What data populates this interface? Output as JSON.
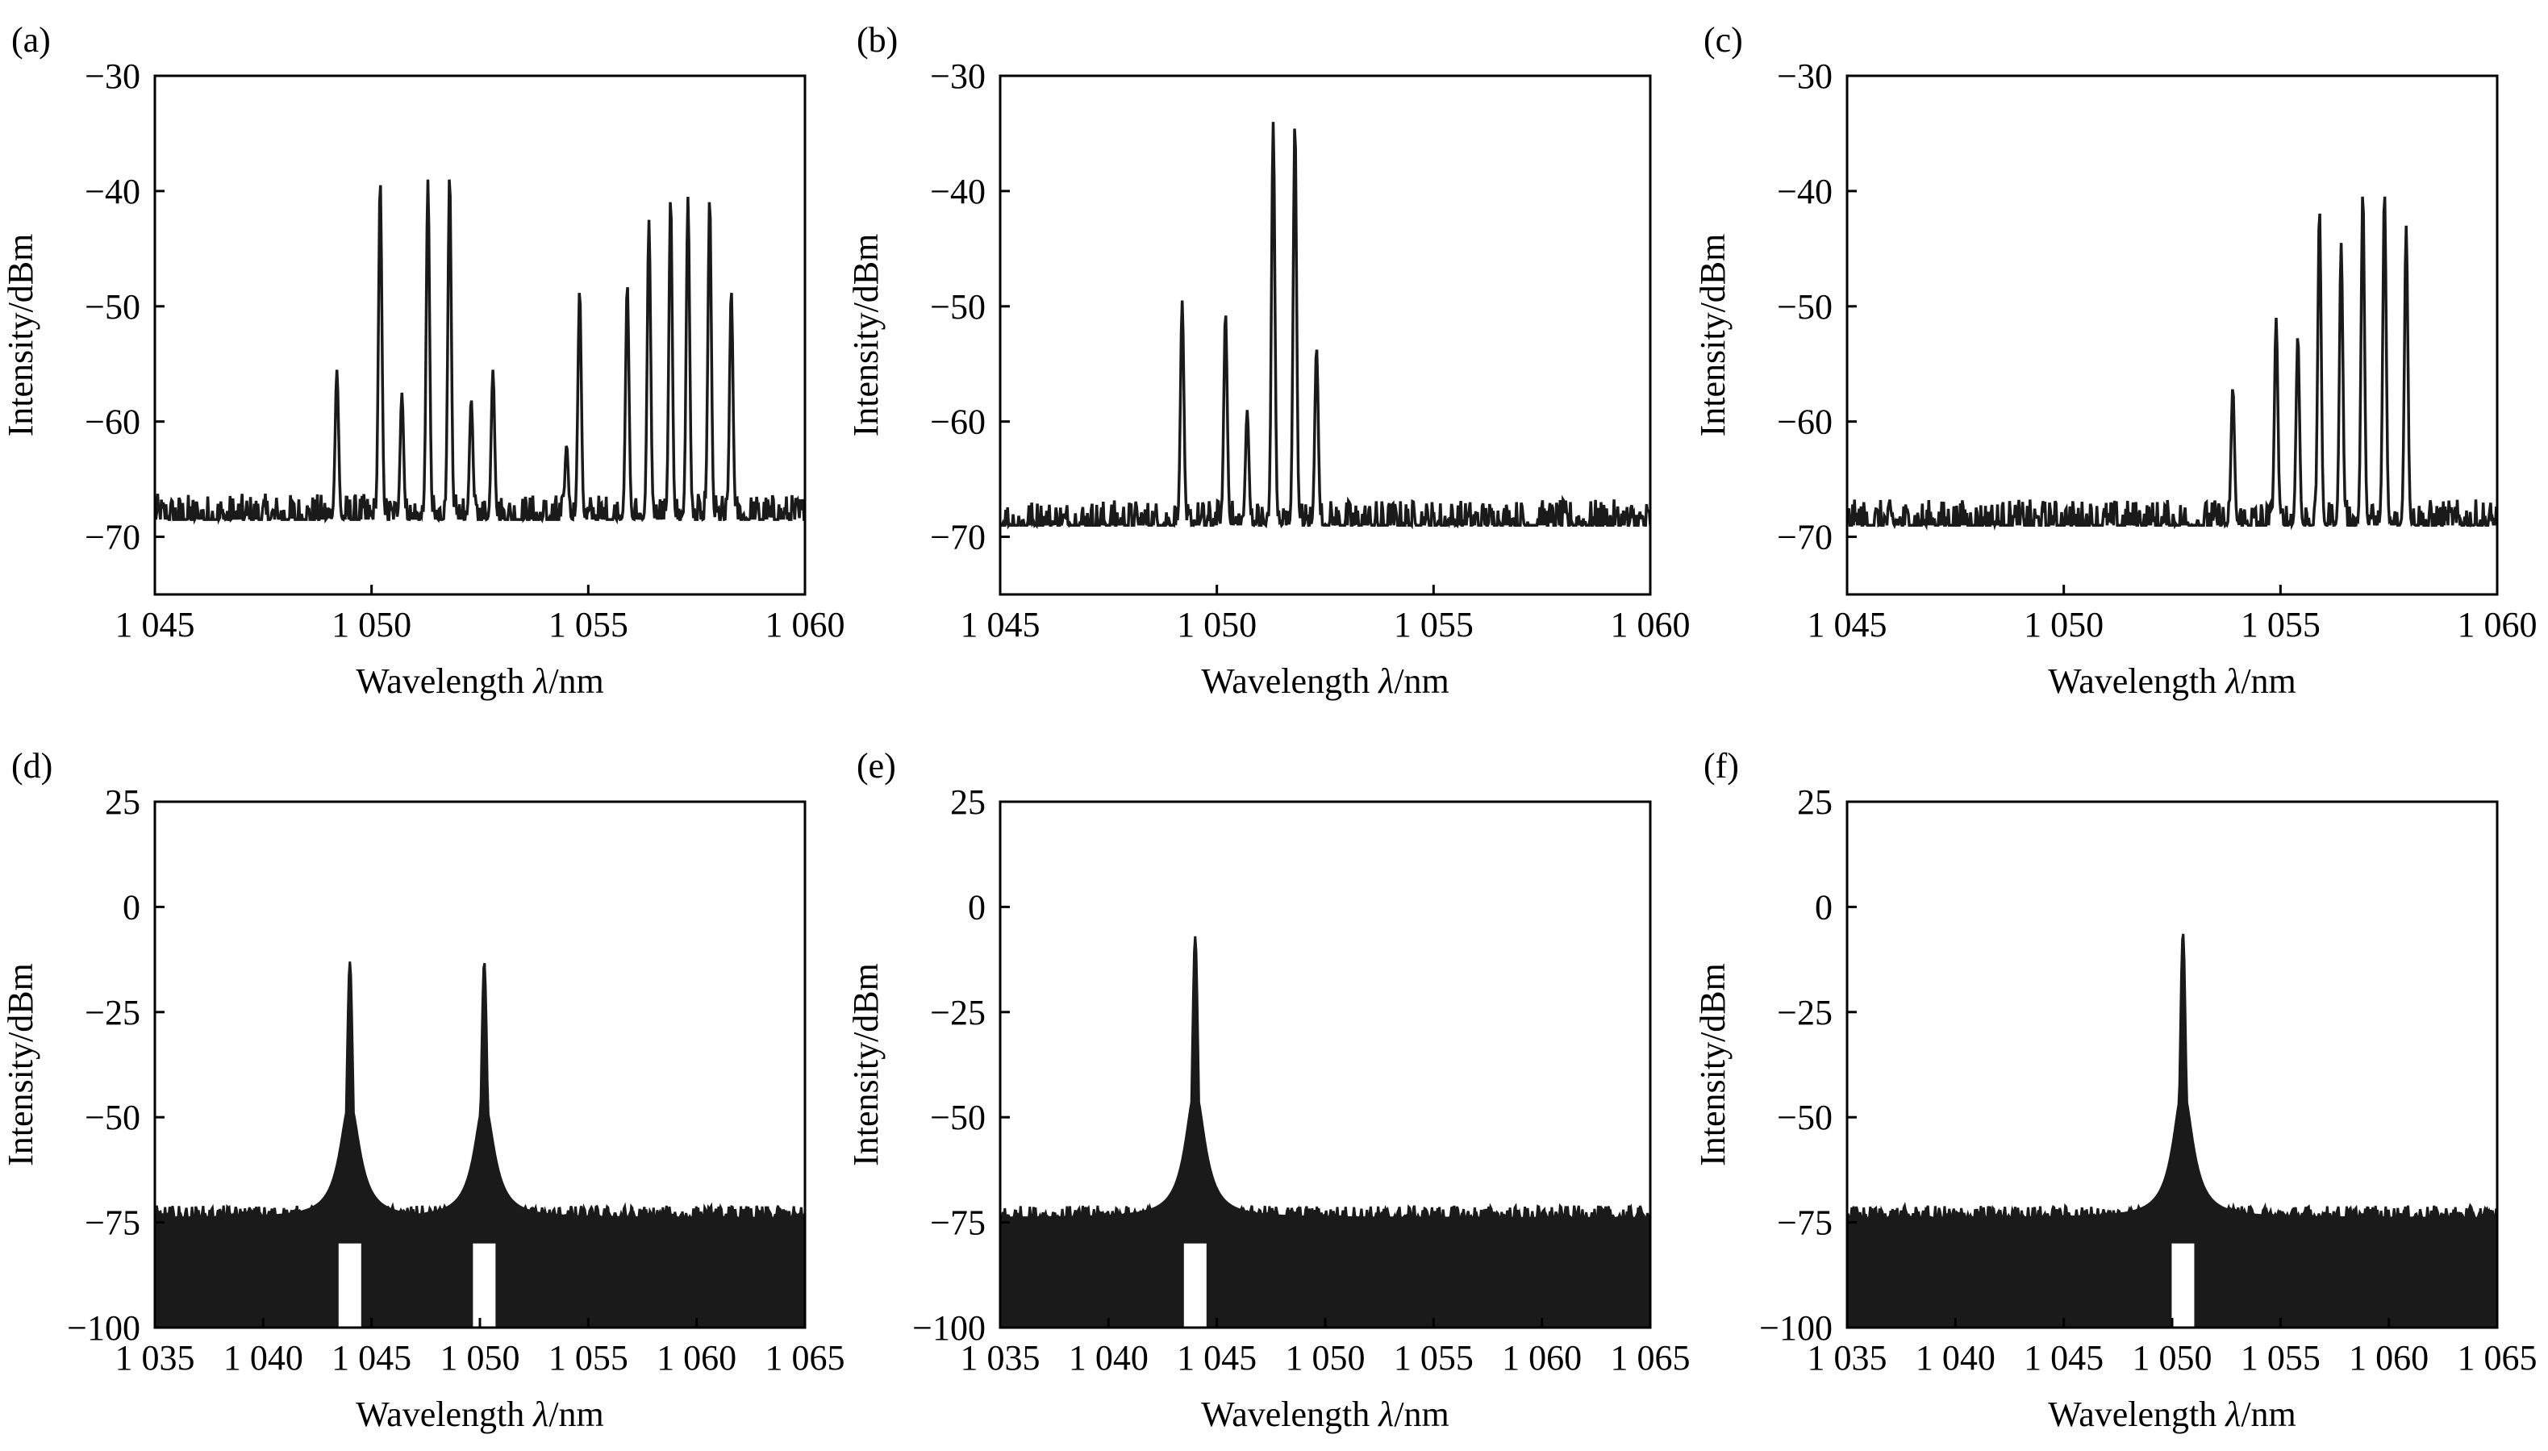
{
  "figure": {
    "colors": {
      "trace": "#1a1a1a",
      "frame": "#000000",
      "background": "#ffffff"
    }
  },
  "chart_data": [
    {
      "panel": "(a)",
      "type": "line",
      "xlabel": "Wavelength λ/nm",
      "ylabel": "Intensity/dBm",
      "xlim": [
        1045,
        1060
      ],
      "ylim": [
        -75,
        -30
      ],
      "xticks": [
        1045,
        1050,
        1055,
        1060
      ],
      "xtick_labels": [
        "1 045",
        "1 050",
        "1 055",
        "1 060"
      ],
      "yticks": [
        -30,
        -40,
        -50,
        -60,
        -70
      ],
      "ytick_labels": [
        "−30",
        "−40",
        "−50",
        "−60",
        "−70"
      ],
      "noise_floor": -68.5,
      "peaks": [
        {
          "x": 1049.2,
          "y": -55.5
        },
        {
          "x": 1050.2,
          "y": -39.0
        },
        {
          "x": 1050.7,
          "y": -57.5
        },
        {
          "x": 1051.3,
          "y": -39.0
        },
        {
          "x": 1051.8,
          "y": -38.5
        },
        {
          "x": 1052.3,
          "y": -58.0
        },
        {
          "x": 1052.8,
          "y": -55.5
        },
        {
          "x": 1054.5,
          "y": -62.0
        },
        {
          "x": 1054.8,
          "y": -48.5
        },
        {
          "x": 1055.9,
          "y": -48.0
        },
        {
          "x": 1056.4,
          "y": -42.5
        },
        {
          "x": 1056.9,
          "y": -40.5
        },
        {
          "x": 1057.3,
          "y": -40.5
        },
        {
          "x": 1057.8,
          "y": -40.5
        },
        {
          "x": 1058.3,
          "y": -48.5
        }
      ]
    },
    {
      "panel": "(b)",
      "type": "line",
      "xlabel": "Wavelength λ/nm",
      "ylabel": "Intensity/dBm",
      "xlim": [
        1045,
        1060
      ],
      "ylim": [
        -75,
        -30
      ],
      "xticks": [
        1045,
        1050,
        1055,
        1060
      ],
      "xtick_labels": [
        "1 045",
        "1 050",
        "1 055",
        "1 060"
      ],
      "yticks": [
        -30,
        -40,
        -50,
        -60,
        -70
      ],
      "ytick_labels": [
        "−30",
        "−40",
        "−50",
        "−60",
        "−70"
      ],
      "noise_floor": -69.0,
      "peaks": [
        {
          "x": 1049.2,
          "y": -49.5
        },
        {
          "x": 1050.2,
          "y": -50.5
        },
        {
          "x": 1050.7,
          "y": -59.0
        },
        {
          "x": 1051.3,
          "y": -34.0
        },
        {
          "x": 1051.8,
          "y": -34.0
        },
        {
          "x": 1052.3,
          "y": -53.5
        }
      ]
    },
    {
      "panel": "(c)",
      "type": "line",
      "xlabel": "Wavelength λ/nm",
      "ylabel": "Intensity/dBm",
      "xlim": [
        1045,
        1060
      ],
      "ylim": [
        -75,
        -30
      ],
      "xticks": [
        1045,
        1050,
        1055,
        1060
      ],
      "xtick_labels": [
        "1 045",
        "1 050",
        "1 055",
        "1 060"
      ],
      "yticks": [
        -30,
        -40,
        -50,
        -60,
        -70
      ],
      "ytick_labels": [
        "−30",
        "−40",
        "−50",
        "−60",
        "−70"
      ],
      "noise_floor": -69.0,
      "peaks": [
        {
          "x": 1053.9,
          "y": -57.0
        },
        {
          "x": 1054.9,
          "y": -51.0
        },
        {
          "x": 1055.4,
          "y": -52.5
        },
        {
          "x": 1055.9,
          "y": -41.5
        },
        {
          "x": 1056.4,
          "y": -44.5
        },
        {
          "x": 1056.9,
          "y": -40.0
        },
        {
          "x": 1057.4,
          "y": -40.0
        },
        {
          "x": 1057.9,
          "y": -43.0
        }
      ]
    },
    {
      "panel": "(d)",
      "type": "area",
      "xlabel": "Wavelength λ/nm",
      "ylabel": "Intensity/dBm",
      "xlim": [
        1035,
        1065
      ],
      "ylim": [
        -100,
        25
      ],
      "xticks": [
        1035,
        1040,
        1045,
        1050,
        1055,
        1060,
        1065
      ],
      "xtick_labels": [
        "1 035",
        "1 040",
        "1 045",
        "1 050",
        "1 055",
        "1 060",
        "1 065"
      ],
      "yticks": [
        25,
        0,
        -25,
        -50,
        -75,
        -100
      ],
      "ytick_labels": [
        "25",
        "0",
        "−25",
        "−50",
        "−75",
        "−100"
      ],
      "noise_floor": -74.0,
      "peaks": [
        {
          "x": 1044.0,
          "y": -13.0
        },
        {
          "x": 1050.2,
          "y": -13.0
        }
      ]
    },
    {
      "panel": "(e)",
      "type": "area",
      "xlabel": "Wavelength λ/nm",
      "ylabel": "Intensity/dBm",
      "xlim": [
        1035,
        1065
      ],
      "ylim": [
        -100,
        25
      ],
      "xticks": [
        1035,
        1040,
        1045,
        1050,
        1055,
        1060,
        1065
      ],
      "xtick_labels": [
        "1 035",
        "1 040",
        "1 045",
        "1 050",
        "1 055",
        "1 060",
        "1 065"
      ],
      "yticks": [
        25,
        0,
        -25,
        -50,
        -75,
        -100
      ],
      "ytick_labels": [
        "25",
        "0",
        "−25",
        "−50",
        "−75",
        "−100"
      ],
      "noise_floor": -74.0,
      "peaks": [
        {
          "x": 1044.0,
          "y": -7.0
        }
      ]
    },
    {
      "panel": "(f)",
      "type": "area",
      "xlabel": "Wavelength λ/nm",
      "ylabel": "Intensity/dBm",
      "xlim": [
        1035,
        1065
      ],
      "ylim": [
        -100,
        25
      ],
      "xticks": [
        1035,
        1040,
        1045,
        1050,
        1055,
        1060,
        1065
      ],
      "xtick_labels": [
        "1 035",
        "1 040",
        "1 045",
        "1 050",
        "1 055",
        "1 060",
        "1 065"
      ],
      "yticks": [
        25,
        0,
        -25,
        -50,
        -75,
        -100
      ],
      "ytick_labels": [
        "25",
        "0",
        "−25",
        "−50",
        "−75",
        "−100"
      ],
      "noise_floor": -74.0,
      "peaks": [
        {
          "x": 1050.5,
          "y": -6.0
        }
      ]
    }
  ]
}
